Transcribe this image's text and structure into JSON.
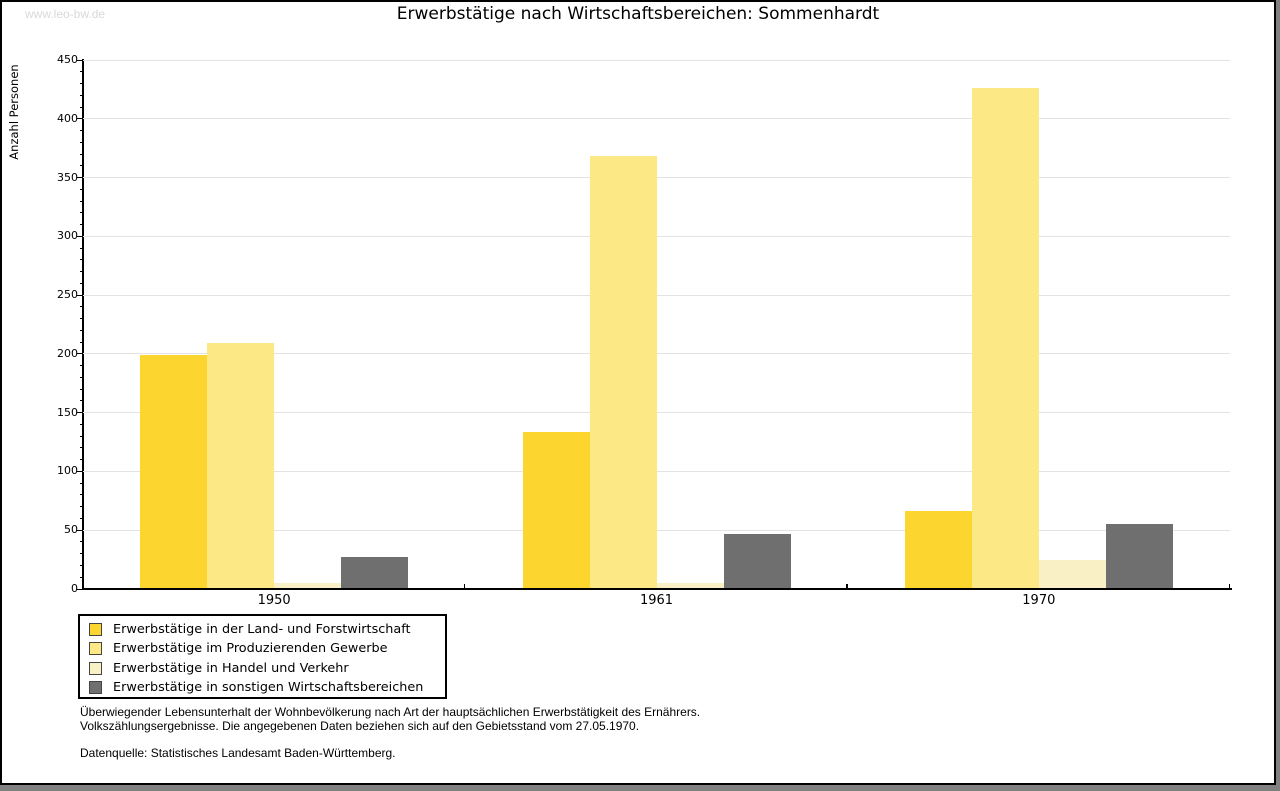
{
  "watermark": "www.leo-bw.de",
  "title": "Erwerbstätige nach Wirtschaftsbereichen: Sommenhardt",
  "chart_data": {
    "type": "bar",
    "title": "Erwerbstätige nach Wirtschaftsbereichen: Sommenhardt",
    "ylabel": "Anzahl Personen",
    "xlabel": "",
    "categories": [
      "1950",
      "1961",
      "1970"
    ],
    "series": [
      {
        "name": "Erwerbstätige in der Land- und Forstwirtschaft",
        "color": "#FDD52F",
        "values": [
          199,
          133,
          66
        ]
      },
      {
        "name": "Erwerbstätige im Produzierenden Gewerbe",
        "color": "#FCE885",
        "values": [
          209,
          368,
          426
        ]
      },
      {
        "name": "Erwerbstätige in Handel und Verkehr",
        "color": "#FAF0C5",
        "values": [
          5,
          5,
          24
        ]
      },
      {
        "name": "Erwerbstätige in sonstigen Wirtschaftsbereichen",
        "color": "#6F6F6F",
        "values": [
          27,
          46,
          55
        ]
      }
    ],
    "ylim": [
      0,
      450
    ],
    "yticks": [
      0,
      50,
      100,
      150,
      200,
      250,
      300,
      350,
      400,
      450
    ],
    "ytick_step": 50,
    "minor_tick_step": 10,
    "grid": "horizontal",
    "gridline_color": "#e3e3e3",
    "legend_position": "bottom-left"
  },
  "footnote": {
    "line1": "Überwiegender Lebensunterhalt der Wohnbevölkerung nach Art der hauptsächlichen Erwerbstätigkeit des Ernährers.",
    "line2": "Volkszählungsergebnisse. Die angegebenen Daten beziehen sich auf den Gebietsstand vom 27.05.1970.",
    "source": "Datenquelle: Statistisches Landesamt Baden-Württemberg."
  }
}
